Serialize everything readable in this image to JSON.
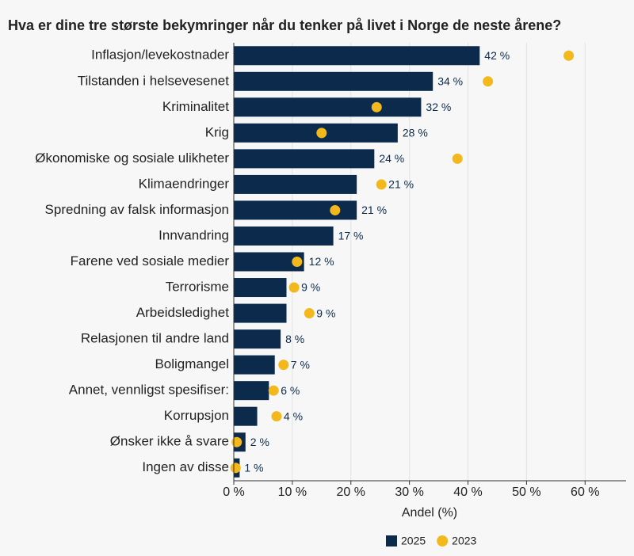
{
  "chart_data": {
    "type": "bar",
    "title": "Hva er dine tre største bekymringer når du tenker på livet i Norge de neste årene?",
    "x_label": "Andel (%)",
    "categories": [
      "Inflasjon/levekostnader",
      "Tilstanden i helsevesenet",
      "Kriminalitet",
      "Krig",
      "Økonomiske og sosiale ulikheter",
      "Klimaendringer",
      "Spredning av falsk informasjon",
      "Innvandring",
      "Farene ved sosiale medier",
      "Terrorisme",
      "Arbeidsledighet",
      "Relasjonen til andre land",
      "Boligmangel",
      "Annet, vennligst spesifiser:",
      "Korrupsjon",
      "Ønsker ikke å svare",
      "Ingen av disse"
    ],
    "series": [
      {
        "name": "2025",
        "color": "#0c2a4c",
        "mark": "bar",
        "values": [
          42,
          34,
          32,
          28,
          24,
          21,
          21,
          17,
          12,
          9,
          9,
          8,
          7,
          6,
          4,
          2,
          1
        ],
        "value_labels": [
          "42 %",
          "34 %",
          "32 %",
          "28 %",
          "24 %",
          "21 %",
          "21 %",
          "17 %",
          "12 %",
          "9 %",
          "9 %",
          "8 %",
          "7 %",
          "6 %",
          "4 %",
          "2 %",
          "1 %"
        ]
      },
      {
        "name": "2023",
        "color": "#f2b81c",
        "mark": "dot",
        "values": [
          57.2,
          43.4,
          24.4,
          15.0,
          38.2,
          25.2,
          17.3,
          null,
          10.8,
          10.3,
          12.9,
          null,
          8.5,
          6.8,
          7.3,
          0.5,
          0.3
        ]
      }
    ],
    "xlim": [
      0,
      67
    ],
    "xticks": [
      {
        "value": 0,
        "label": "0 %"
      },
      {
        "value": 10,
        "label": "10 %"
      },
      {
        "value": 20,
        "label": "20 %"
      },
      {
        "value": 30,
        "label": "30 %"
      },
      {
        "value": 40,
        "label": "40 %"
      },
      {
        "value": 50,
        "label": "50 %"
      },
      {
        "value": 60,
        "label": "60 %"
      }
    ],
    "grid": true,
    "legend": "bottom"
  }
}
